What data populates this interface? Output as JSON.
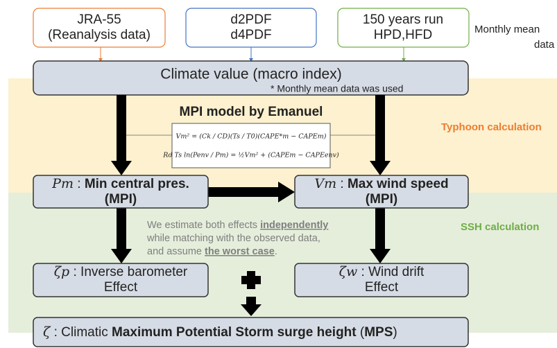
{
  "sources": [
    {
      "line1": "JRA-55",
      "line2": "(Reanalysis data)"
    },
    {
      "line1": "d2PDF",
      "line2": "d4PDF"
    },
    {
      "line1": "150 years run",
      "line2": "HPD,HFD"
    }
  ],
  "sources_note": {
    "line1": "Monthly mean",
    "line2": "data"
  },
  "climate_box": {
    "title": "Climate value (macro index)",
    "note": "* Monthly mean data was used"
  },
  "model": {
    "title": "MPI model by Emanuel",
    "equation1": "Vm² = (Ck / CD)(Ts / T0)(CAPE*m − CAPEm)",
    "equation2": "Rd Ts ln(Penv / Pm) = ½Vm² + (CAPEm − CAPEenv)"
  },
  "sections": {
    "typhoon": "Typhoon calculation",
    "ssh": "SSH calculation"
  },
  "pm_box": {
    "symbol": "Pm",
    "sep": " : ",
    "label": "Min central pres.",
    "line2": "(MPI)"
  },
  "vm_box": {
    "symbol": "Vm",
    "sep": " : ",
    "label": "Max wind speed",
    "line2": "(MPI)"
  },
  "estimate_note": {
    "line1_a": "We estimate both effects ",
    "line1_b": "independently",
    "line2": "while matching with the observed data,",
    "line3_a": "and assume ",
    "line3_b": "the worst case",
    "line3_c": "."
  },
  "zp_box": {
    "symbol": "ζp",
    "line1": " : Inverse barometer",
    "line2": "Effect"
  },
  "zw_box": {
    "symbol": "ζw",
    "line1": " : Wind drift",
    "line2": "Effect"
  },
  "result_box": {
    "symbol": "ζ",
    "part1": " : Climatic ",
    "part2": "Maximum Potential Storm surge height",
    "part3": " (",
    "part4": "MPS",
    "part5": ")"
  }
}
